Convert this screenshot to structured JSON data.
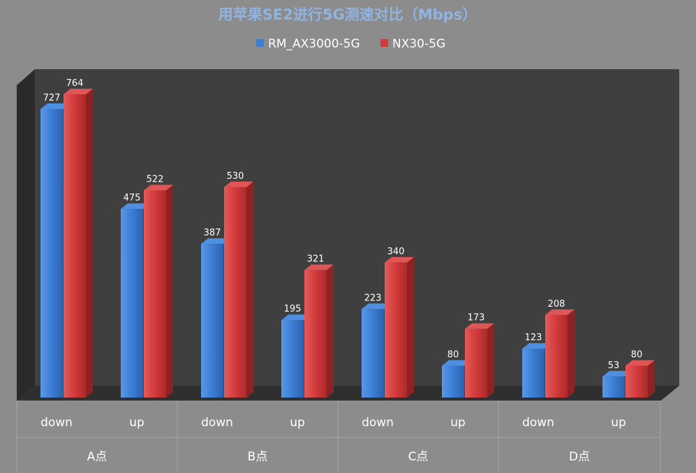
{
  "chart_data": {
    "type": "bar",
    "title": "用苹果SE2进行5G测速对比（Mbps）",
    "legend_position": "top",
    "ylim": [
      0,
      800
    ],
    "grid": false,
    "groups": [
      {
        "label": "A点",
        "categories": [
          "down",
          "up"
        ]
      },
      {
        "label": "B点",
        "categories": [
          "down",
          "up"
        ]
      },
      {
        "label": "C点",
        "categories": [
          "down",
          "up"
        ]
      },
      {
        "label": "D点",
        "categories": [
          "down",
          "up"
        ]
      }
    ],
    "series": [
      {
        "name": "RM_AX3000-5G",
        "color": "#3b7dd4",
        "values": [
          727,
          475,
          387,
          195,
          223,
          80,
          123,
          53
        ]
      },
      {
        "name": "NX30-5G",
        "color": "#d23a3a",
        "values": [
          764,
          522,
          530,
          321,
          340,
          173,
          208,
          80
        ]
      }
    ]
  }
}
